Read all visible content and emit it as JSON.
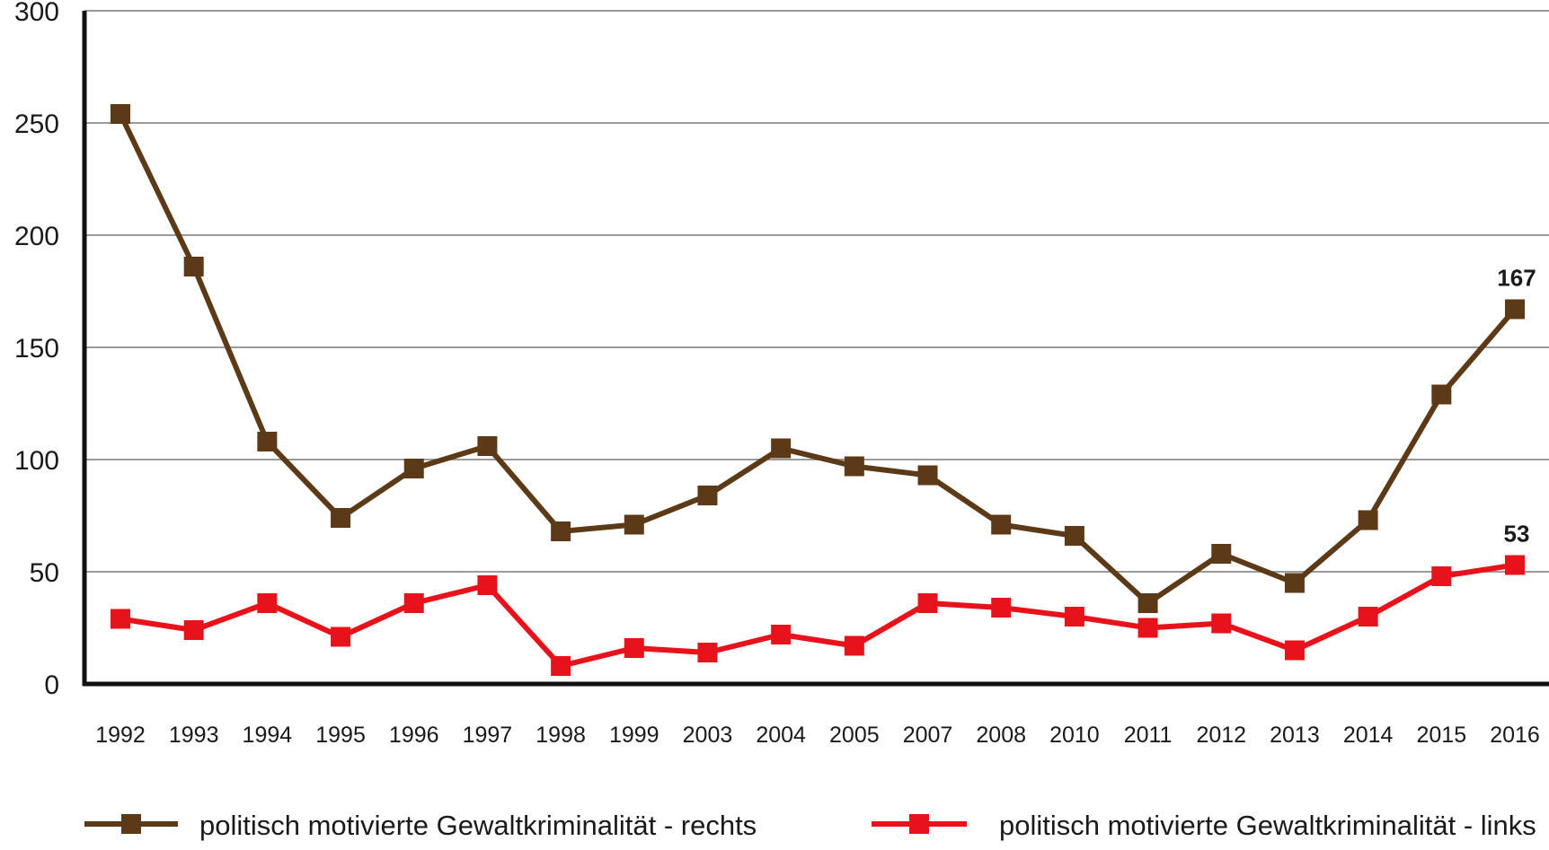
{
  "chart_data": {
    "type": "line",
    "categories": [
      "1992",
      "1993",
      "1994",
      "1995",
      "1996",
      "1997",
      "1998",
      "1999",
      "2003",
      "2004",
      "2005",
      "2007",
      "2008",
      "2010",
      "2011",
      "2012",
      "2013",
      "2014",
      "2015",
      "2016"
    ],
    "series": [
      {
        "name": "politisch motivierte Gewaltkriminalität - rechts",
        "color": "#5c3a17",
        "values": [
          254,
          186,
          108,
          74,
          96,
          106,
          68,
          71,
          84,
          105,
          97,
          93,
          71,
          66,
          36,
          58,
          45,
          73,
          129,
          167
        ]
      },
      {
        "name": "politisch motivierte Gewaltkriminalität - links",
        "color": "#e8121b",
        "values": [
          29,
          24,
          36,
          21,
          36,
          44,
          8,
          16,
          14,
          22,
          17,
          36,
          34,
          30,
          25,
          27,
          15,
          30,
          48,
          53
        ]
      }
    ],
    "yticks": [
      0,
      50,
      100,
      150,
      200,
      250,
      300
    ],
    "ylim": [
      0,
      300
    ],
    "grid": true,
    "legend_position": "bottom",
    "annotations": [
      {
        "series": 0,
        "index": 19,
        "text": "167"
      },
      {
        "series": 1,
        "index": 19,
        "text": "53"
      }
    ],
    "title": "",
    "xlabel": "",
    "ylabel": ""
  }
}
